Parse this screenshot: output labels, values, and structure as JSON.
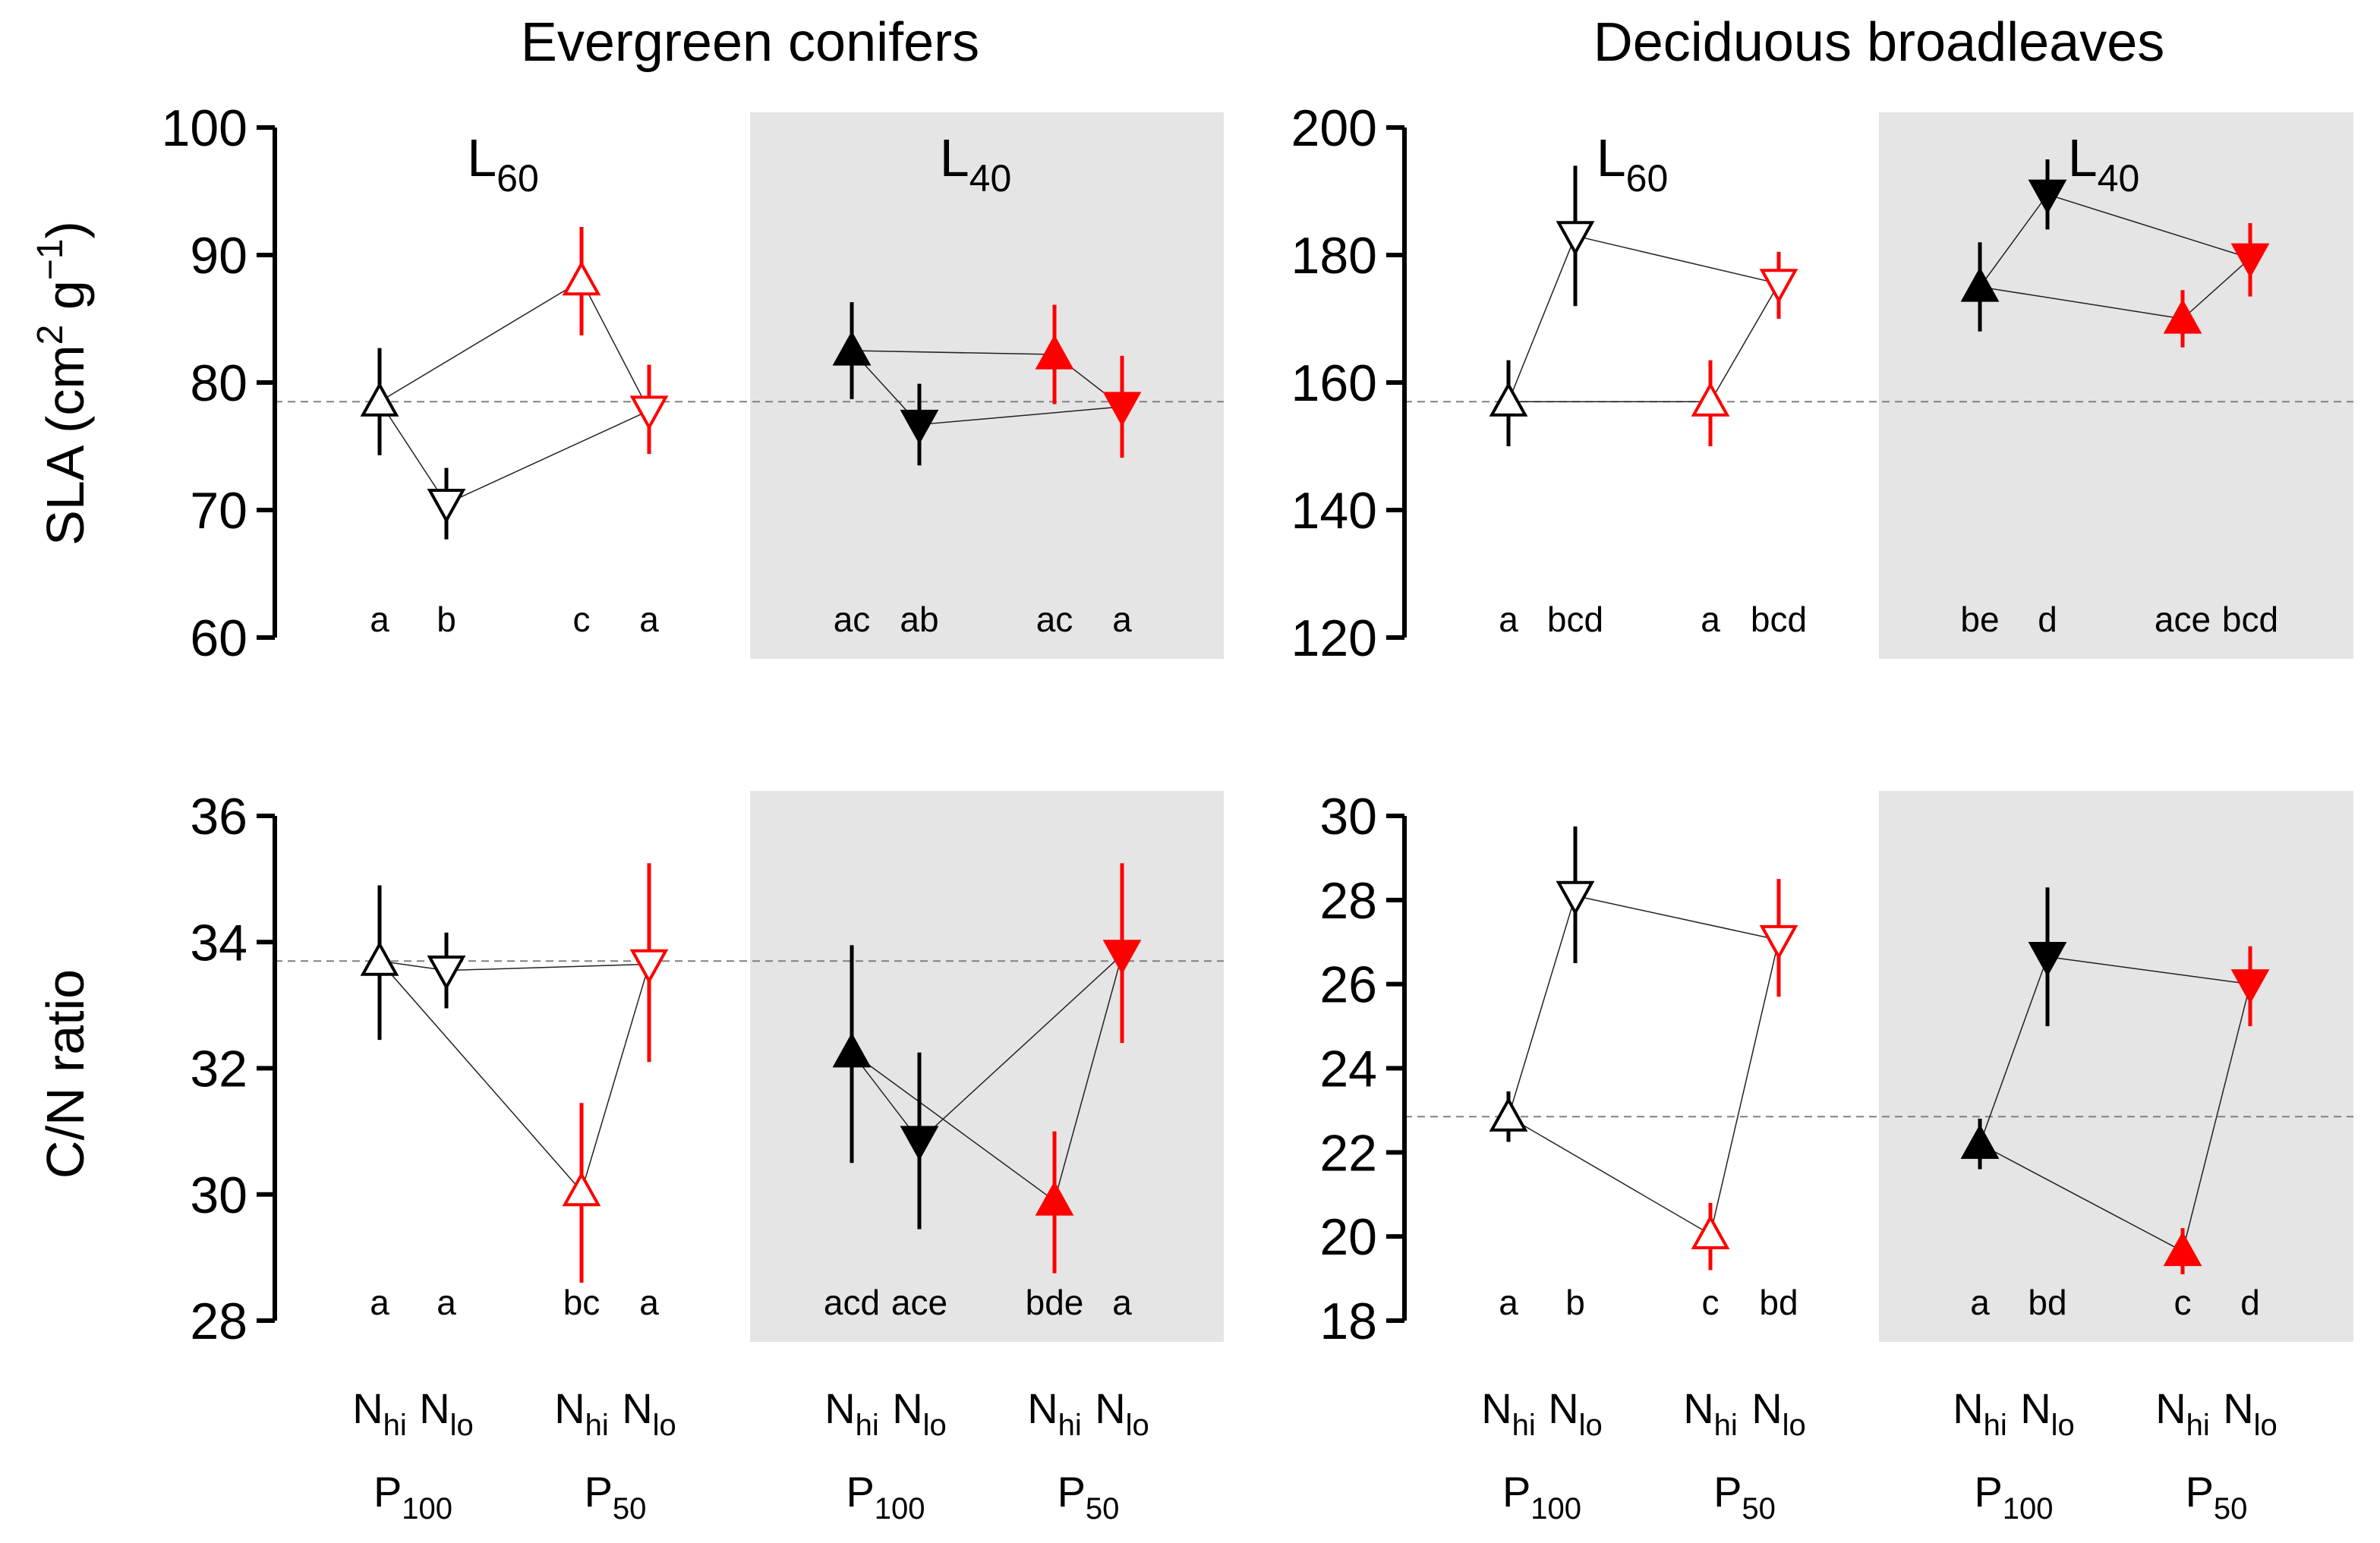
{
  "colors": {
    "black": "#000000",
    "red": "#ff0000",
    "shade": "#e5e5e5",
    "reference_line": "#808080",
    "connector": "#222222"
  },
  "groups": [
    {
      "title": "Evergreen conifers"
    },
    {
      "title": "Deciduous broadleaves"
    }
  ],
  "light_labels": [
    {
      "base": "L",
      "sub": "60"
    },
    {
      "base": "L",
      "sub": "40"
    }
  ],
  "n_labels": {
    "hi": {
      "base": "N",
      "sub": "hi"
    },
    "lo": {
      "base": "N",
      "sub": "lo"
    }
  },
  "p_labels": [
    {
      "base": "P",
      "sub": "100"
    },
    {
      "base": "P",
      "sub": "50"
    }
  ],
  "x_conditions": [
    {
      "light": "L60",
      "p": "P100",
      "n": "Nhi"
    },
    {
      "light": "L60",
      "p": "P100",
      "n": "Nlo"
    },
    {
      "light": "L60",
      "p": "P50",
      "n": "Nhi"
    },
    {
      "light": "L60",
      "p": "P50",
      "n": "Nlo"
    },
    {
      "light": "L40",
      "p": "P100",
      "n": "Nhi"
    },
    {
      "light": "L40",
      "p": "P100",
      "n": "Nlo"
    },
    {
      "light": "L40",
      "p": "P50",
      "n": "Nhi"
    },
    {
      "light": "L40",
      "p": "P50",
      "n": "Nlo"
    }
  ],
  "marker_key": {
    "Nhi": "triangle-up",
    "Nlo": "triangle-down",
    "L60": "open",
    "L40": "filled",
    "P100": "black",
    "P50": "red"
  },
  "y_axis_labels": {
    "sla": {
      "prefix": "SLA (cm",
      "sup1": "2",
      "mid": " g",
      "sup2": "−1",
      "suffix": ")"
    },
    "cn": "C/N ratio"
  },
  "chart_data": [
    {
      "type": "scatter",
      "group": "Evergreen conifers",
      "variable": "SLA",
      "ylim": [
        60,
        100
      ],
      "yticks": [
        60,
        70,
        80,
        90,
        100
      ],
      "reference_line": 78.5,
      "means": [
        78.5,
        70.5,
        88,
        77.8,
        82.5,
        76.7,
        82.2,
        78.1
      ],
      "err_low": [
        74.3,
        67.7,
        83.7,
        74.4,
        78.7,
        73.5,
        78.3,
        74.1
      ],
      "err_high": [
        82.7,
        73.3,
        92.2,
        81.4,
        86.3,
        79.9,
        86.1,
        82.1
      ],
      "letters": [
        "a",
        "b",
        "c",
        "a",
        "ac",
        "ab",
        "ac",
        "a"
      ]
    },
    {
      "type": "scatter",
      "group": "Deciduous broadleaves",
      "variable": "SLA",
      "ylim": [
        120,
        200
      ],
      "yticks": [
        120,
        140,
        160,
        180,
        200
      ],
      "reference_line": 157,
      "means": [
        157,
        183,
        157,
        175.5,
        175,
        189.5,
        170,
        179.5
      ],
      "err_low": [
        150,
        172,
        150,
        170,
        168,
        184,
        165.5,
        173.5
      ],
      "err_high": [
        163.5,
        194,
        163.5,
        180.5,
        182,
        195,
        174.5,
        185
      ],
      "letters": [
        "a",
        "bcd",
        "a",
        "bcd",
        "be",
        "d",
        "ace",
        "bcd"
      ]
    },
    {
      "type": "scatter",
      "group": "Evergreen conifers",
      "variable": "C/N ratio",
      "ylim": [
        28,
        36
      ],
      "yticks": [
        28,
        30,
        32,
        34,
        36
      ],
      "reference_line": 33.7,
      "means": [
        33.7,
        33.55,
        30.05,
        33.65,
        32.25,
        30.85,
        29.9,
        33.8
      ],
      "err_low": [
        32.45,
        32.95,
        28.6,
        32.1,
        30.5,
        29.45,
        28.75,
        32.4
      ],
      "err_high": [
        34.9,
        34.15,
        31.45,
        35.25,
        33.95,
        32.25,
        31.0,
        35.25
      ],
      "letters": [
        "a",
        "a",
        "bc",
        "a",
        "acd",
        "ace",
        "bde",
        "a"
      ]
    },
    {
      "type": "scatter",
      "group": "Deciduous broadleaves",
      "variable": "C/N ratio",
      "ylim": [
        18,
        30
      ],
      "yticks": [
        18,
        20,
        22,
        24,
        26,
        28,
        30
      ],
      "reference_line": 22.85,
      "means": [
        22.85,
        28.1,
        20.05,
        27.05,
        22.2,
        26.65,
        19.65,
        26.0
      ],
      "err_low": [
        22.25,
        26.5,
        19.2,
        25.7,
        21.6,
        25.0,
        19.1,
        25.0
      ],
      "err_high": [
        23.45,
        29.75,
        20.8,
        28.5,
        22.8,
        28.3,
        20.2,
        26.9
      ],
      "letters": [
        "a",
        "b",
        "c",
        "bd",
        "a",
        "bd",
        "c",
        "d"
      ]
    }
  ]
}
